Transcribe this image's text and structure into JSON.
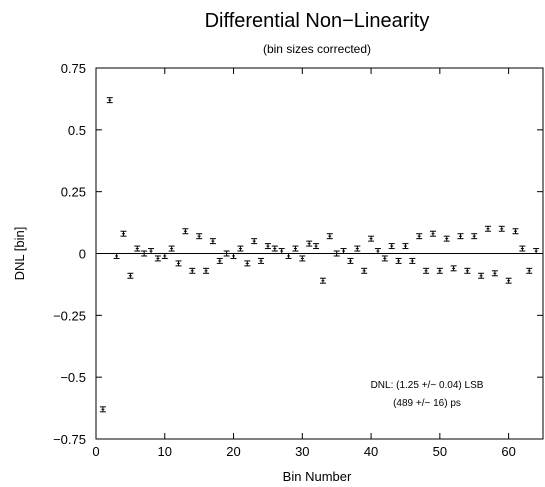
{
  "chart_data": {
    "type": "scatter",
    "title": "Differential Non−Linearity",
    "subtitle": "(bin sizes corrected)",
    "xlabel": "Bin Number",
    "ylabel": "DNL [bin]",
    "xlim": [
      0,
      65
    ],
    "ylim": [
      -0.75,
      0.75
    ],
    "x_ticks": [
      0,
      10,
      20,
      30,
      40,
      50,
      60
    ],
    "x_tick_labels": [
      "0",
      "10",
      "20",
      "30",
      "40",
      "50",
      "60"
    ],
    "y_ticks": [
      -0.75,
      -0.5,
      -0.25,
      0,
      0.25,
      0.5,
      0.75
    ],
    "y_tick_labels": [
      "−0.75",
      "−0.5",
      "−0.25",
      "0",
      "0.25",
      "0.5",
      "0.75"
    ],
    "grid": false,
    "zero_line": true,
    "error_bars": true,
    "series": [
      {
        "x": [
          1,
          2,
          3,
          4,
          5,
          6,
          7,
          8,
          9,
          10,
          11,
          12,
          13,
          14,
          15,
          16,
          17,
          18,
          19,
          20,
          21,
          22,
          23,
          24,
          25,
          26,
          27,
          28,
          29,
          30,
          31,
          32,
          33,
          34,
          35,
          36,
          37,
          38,
          39,
          40,
          41,
          42,
          43,
          44,
          45,
          46,
          47,
          48,
          49,
          50,
          51,
          52,
          53,
          54,
          55,
          56,
          57,
          58,
          59,
          60,
          61,
          62,
          63,
          64
        ],
        "y": [
          -0.63,
          0.62,
          -0.01,
          0.08,
          -0.09,
          0.02,
          0.0,
          0.01,
          -0.02,
          -0.01,
          0.02,
          -0.04,
          0.09,
          -0.07,
          0.07,
          -0.07,
          0.05,
          -0.03,
          0.0,
          -0.01,
          0.02,
          -0.04,
          0.05,
          -0.03,
          0.03,
          0.02,
          0.01,
          -0.01,
          0.02,
          -0.02,
          0.04,
          0.03,
          -0.11,
          0.07,
          0.0,
          0.01,
          -0.03,
          0.02,
          -0.07,
          0.06,
          0.01,
          -0.02,
          0.03,
          -0.03,
          0.03,
          -0.03,
          0.07,
          -0.07,
          0.08,
          -0.07,
          0.06,
          -0.06,
          0.07,
          -0.07,
          0.07,
          -0.09,
          0.1,
          -0.08,
          0.1,
          -0.11,
          0.09,
          0.02,
          -0.07,
          0.01
        ],
        "error": 0.01
      }
    ],
    "annotations": [
      "DNL: (1.25 +/− 0.04) LSB",
      "(489 +/− 16) ps"
    ]
  }
}
